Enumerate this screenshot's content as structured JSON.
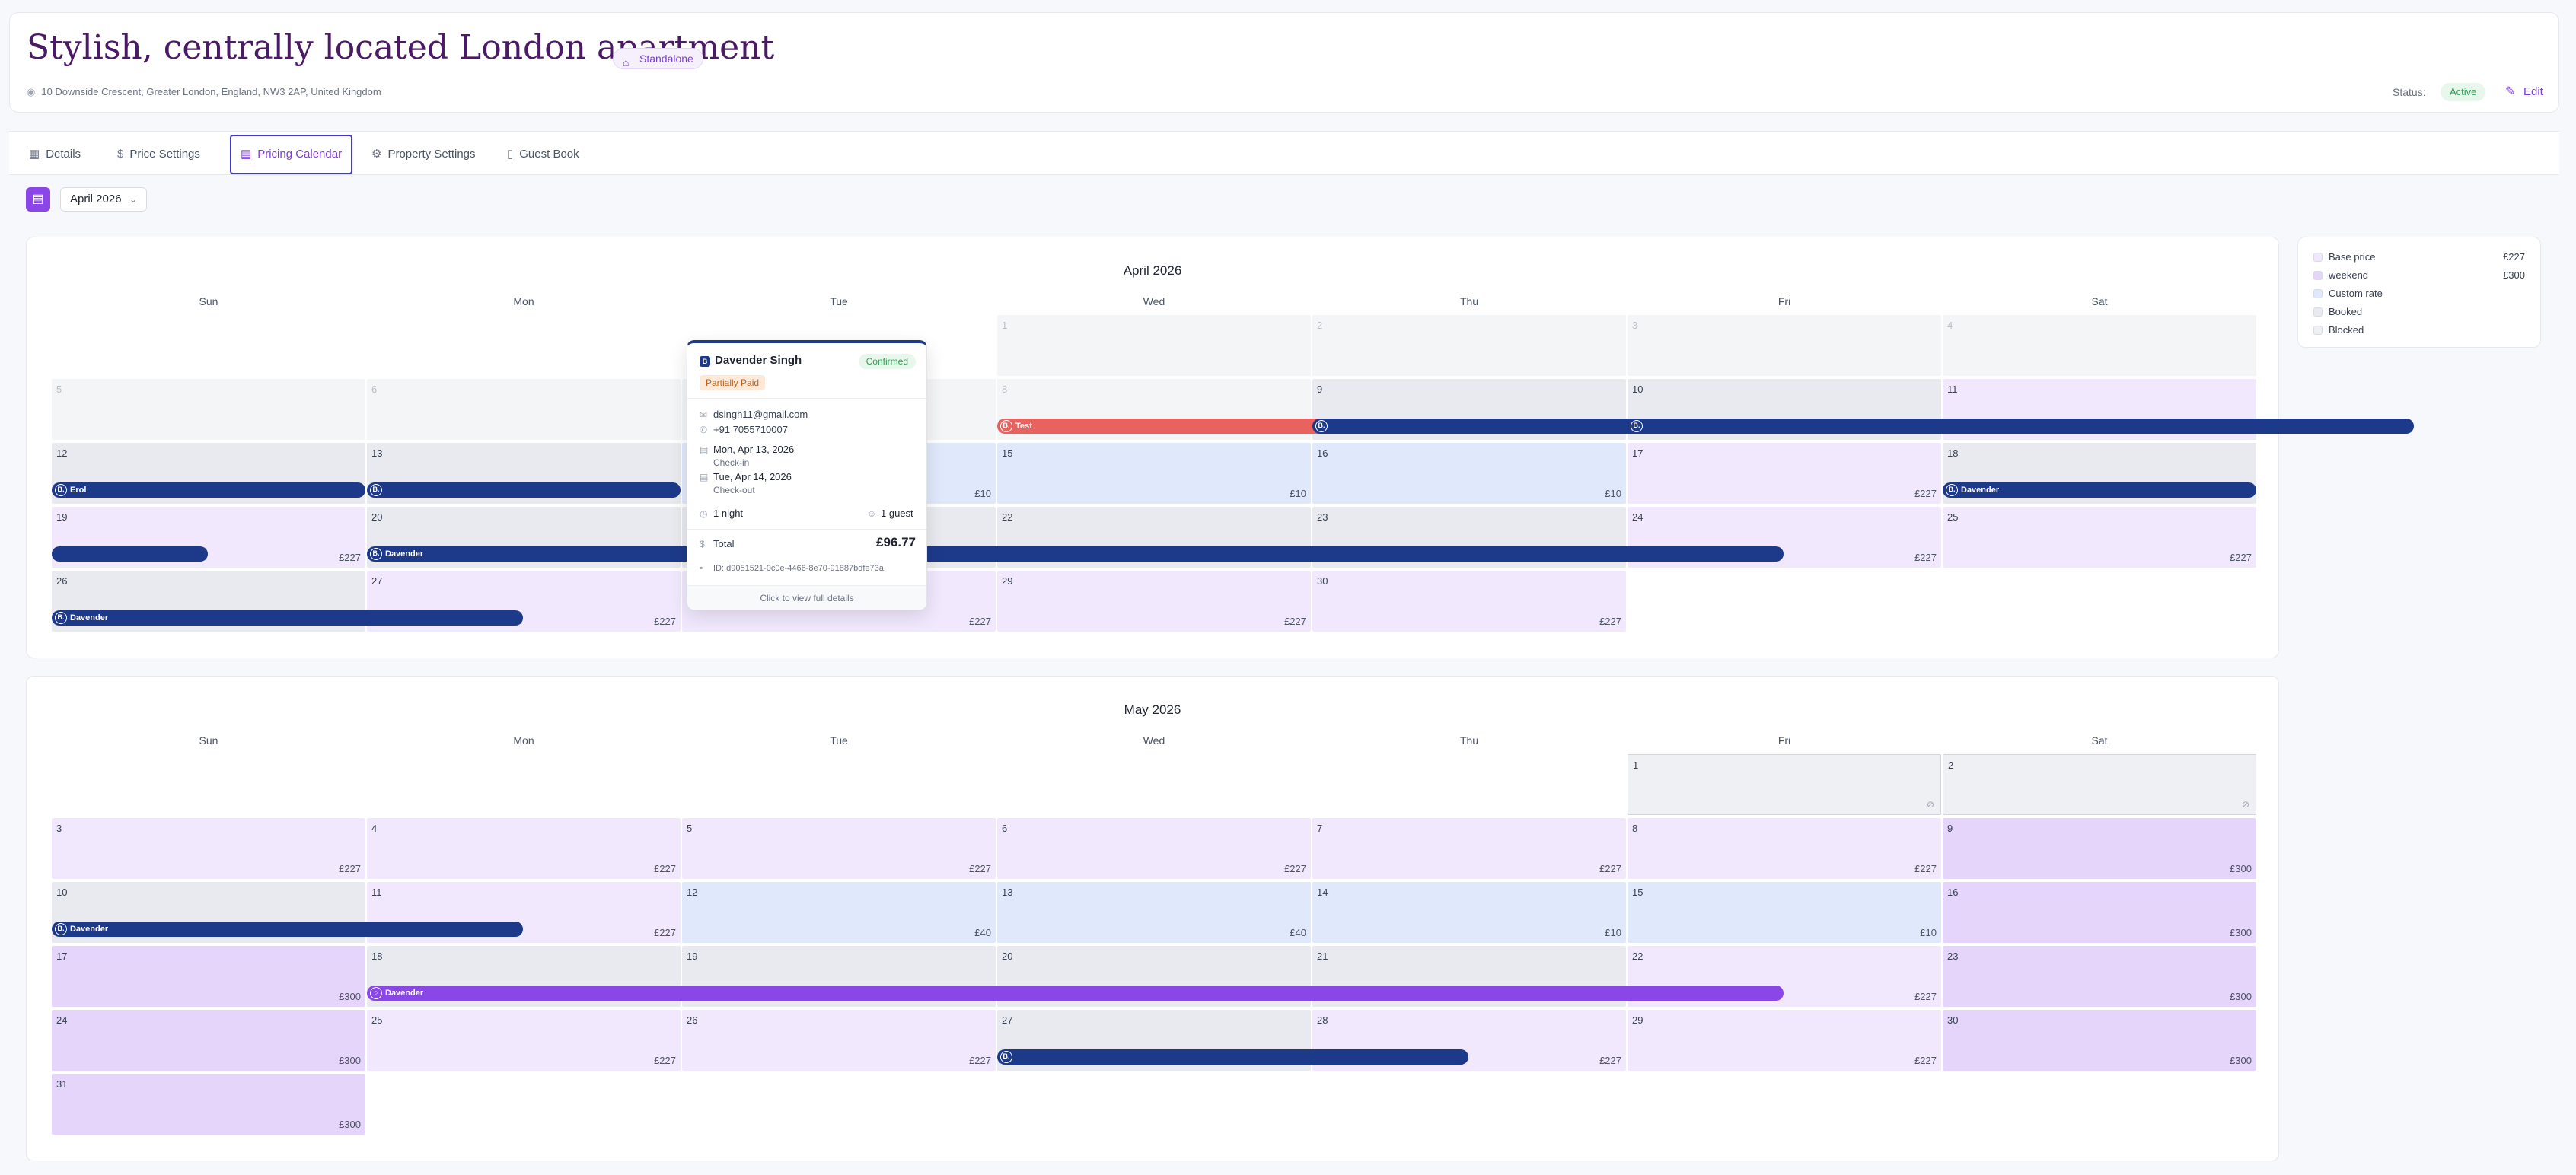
{
  "header": {
    "title": "Stylish, centrally located London apartment",
    "type_badge": "Standalone",
    "address": "10 Downside Crescent, Greater London, England, NW3 2AP, United Kingdom",
    "status_label": "Status:",
    "status_value": "Active",
    "edit_label": "Edit"
  },
  "tabs": [
    {
      "label": "Details",
      "icon": "building-icon"
    },
    {
      "label": "Price Settings",
      "icon": "dollar-icon"
    },
    {
      "label": "Pricing Calendar",
      "icon": "calendar-icon",
      "active": true
    },
    {
      "label": "Property Settings",
      "icon": "gear-icon"
    },
    {
      "label": "Guest Book",
      "icon": "book-icon"
    }
  ],
  "toolbar": {
    "month_select": "April 2026"
  },
  "weekdays": [
    "Sun",
    "Mon",
    "Tue",
    "Wed",
    "Thu",
    "Fri",
    "Sat"
  ],
  "colors": {
    "accent": "#8b46e8",
    "title": "#4b1a66",
    "booking_bar": "#1d3a8a",
    "test_bar": "#e8625f",
    "direct_bar": "#8b46e8"
  },
  "calendars": [
    {
      "month": "April 2026",
      "weeks": [
        [
          null,
          null,
          null,
          {
            "d": "1",
            "t": "past"
          },
          {
            "d": "2",
            "t": "past"
          },
          {
            "d": "3",
            "t": "past"
          },
          {
            "d": "4",
            "t": "past"
          }
        ],
        [
          {
            "d": "5",
            "t": "past"
          },
          {
            "d": "6",
            "t": "past"
          },
          {
            "d": "7",
            "t": "past"
          },
          {
            "d": "8",
            "t": "past"
          },
          {
            "d": "9",
            "t": "booked"
          },
          {
            "d": "10",
            "t": "booked"
          },
          {
            "d": "11",
            "t": "base",
            "p": "£227"
          }
        ],
        [
          {
            "d": "12",
            "t": "booked"
          },
          {
            "d": "13",
            "t": "booked"
          },
          {
            "d": "14",
            "t": "custom",
            "p": "£10"
          },
          {
            "d": "15",
            "t": "custom",
            "p": "£10"
          },
          {
            "d": "16",
            "t": "custom",
            "p": "£10"
          },
          {
            "d": "17",
            "t": "base",
            "p": "£227"
          },
          {
            "d": "18",
            "t": "booked"
          }
        ],
        [
          {
            "d": "19",
            "t": "base",
            "p": "£227"
          },
          {
            "d": "20",
            "t": "booked"
          },
          {
            "d": "21",
            "t": "booked"
          },
          {
            "d": "22",
            "t": "booked"
          },
          {
            "d": "23",
            "t": "booked"
          },
          {
            "d": "24",
            "t": "base",
            "p": "£227"
          },
          {
            "d": "25",
            "t": "base",
            "p": "£227"
          }
        ],
        [
          {
            "d": "26",
            "t": "booked"
          },
          {
            "d": "27",
            "t": "base",
            "p": "£227"
          },
          {
            "d": "28",
            "t": "base",
            "p": "£227"
          },
          {
            "d": "29",
            "t": "base",
            "p": "£227"
          },
          {
            "d": "30",
            "t": "base",
            "p": "£227"
          },
          null,
          null
        ]
      ],
      "bars": [
        {
          "week": 1,
          "start": 3,
          "span": 1.5,
          "label": "Test",
          "color": "#e8625f",
          "logo": "B."
        },
        {
          "week": 1,
          "start": 4,
          "span": 3.5,
          "label": "",
          "color": "#1d3a8a",
          "logo": "B."
        },
        {
          "week": 1,
          "start": 5,
          "span": 0.3,
          "label": "",
          "color": "#1d3a8a",
          "logo": "B."
        },
        {
          "week": 2,
          "start": 0,
          "span": 1,
          "label": "Erol",
          "color": "#1d3a8a",
          "logo": "B."
        },
        {
          "week": 2,
          "start": 1,
          "span": 1,
          "label": "",
          "color": "#1d3a8a",
          "logo": "B."
        },
        {
          "week": 2,
          "start": 6,
          "span": 1,
          "label": "Davender",
          "color": "#1d3a8a",
          "logo": "B."
        },
        {
          "week": 3,
          "start": 0,
          "span": 0.5,
          "label": "",
          "color": "#1d3a8a",
          "logo": ""
        },
        {
          "week": 3,
          "start": 1,
          "span": 4.5,
          "label": "Davender",
          "color": "#1d3a8a",
          "logo": "B."
        },
        {
          "week": 4,
          "start": 0,
          "span": 1.5,
          "label": "Davender",
          "color": "#1d3a8a",
          "logo": "B."
        }
      ]
    },
    {
      "month": "May 2026",
      "weeks": [
        [
          null,
          null,
          null,
          null,
          null,
          {
            "d": "1",
            "t": "blocked"
          },
          {
            "d": "2",
            "t": "blocked"
          }
        ],
        [
          {
            "d": "3",
            "t": "base",
            "p": "£227"
          },
          {
            "d": "4",
            "t": "base",
            "p": "£227"
          },
          {
            "d": "5",
            "t": "base",
            "p": "£227"
          },
          {
            "d": "6",
            "t": "base",
            "p": "£227"
          },
          {
            "d": "7",
            "t": "base",
            "p": "£227"
          },
          {
            "d": "8",
            "t": "base",
            "p": "£227"
          },
          {
            "d": "9",
            "t": "weekend",
            "p": "£300"
          }
        ],
        [
          {
            "d": "10",
            "t": "booked"
          },
          {
            "d": "11",
            "t": "base",
            "p": "£227"
          },
          {
            "d": "12",
            "t": "custom",
            "p": "£40"
          },
          {
            "d": "13",
            "t": "custom",
            "p": "£40"
          },
          {
            "d": "14",
            "t": "custom",
            "p": "£10"
          },
          {
            "d": "15",
            "t": "custom",
            "p": "£10"
          },
          {
            "d": "16",
            "t": "weekend",
            "p": "£300"
          }
        ],
        [
          {
            "d": "17",
            "t": "weekend",
            "p": "£300"
          },
          {
            "d": "18",
            "t": "booked"
          },
          {
            "d": "19",
            "t": "booked"
          },
          {
            "d": "20",
            "t": "booked"
          },
          {
            "d": "21",
            "t": "booked"
          },
          {
            "d": "22",
            "t": "base",
            "p": "£227"
          },
          {
            "d": "23",
            "t": "weekend",
            "p": "£300"
          }
        ],
        [
          {
            "d": "24",
            "t": "weekend",
            "p": "£300"
          },
          {
            "d": "25",
            "t": "base",
            "p": "£227"
          },
          {
            "d": "26",
            "t": "base",
            "p": "£227"
          },
          {
            "d": "27",
            "t": "booked"
          },
          {
            "d": "28",
            "t": "base",
            "p": "£227"
          },
          {
            "d": "29",
            "t": "base",
            "p": "£227"
          },
          {
            "d": "30",
            "t": "weekend",
            "p": "£300"
          }
        ],
        [
          {
            "d": "31",
            "t": "weekend",
            "p": "£300"
          },
          null,
          null,
          null,
          null,
          null,
          null
        ]
      ],
      "bars": [
        {
          "week": 2,
          "start": 0,
          "span": 1.5,
          "label": "Davender",
          "color": "#1d3a8a",
          "logo": "B."
        },
        {
          "week": 3,
          "start": 1,
          "span": 4.5,
          "label": "Davender",
          "color": "#8b46e8",
          "logo": "○"
        },
        {
          "week": 4,
          "start": 3,
          "span": 1.5,
          "label": "",
          "color": "#1d3a8a",
          "logo": "B."
        }
      ]
    }
  ],
  "legend": [
    {
      "label": "Base price",
      "value": "£227",
      "color": "#f1e8fd"
    },
    {
      "label": "weekend",
      "value": "£300",
      "color": "#e6d5fa"
    },
    {
      "label": "Custom rate",
      "value": "",
      "color": "#dfe9fb"
    },
    {
      "label": "Booked",
      "value": "",
      "color": "#e8eaef"
    },
    {
      "label": "Blocked",
      "value": "",
      "color": "#eef0f4"
    }
  ],
  "popup": {
    "guest_name": "Davender Singh",
    "status": "Confirmed",
    "payment": "Partially Paid",
    "email": "dsingh11@gmail.com",
    "phone": "+91 7055710007",
    "checkin_date": "Mon, Apr 13, 2026",
    "checkin_label": "Check-in",
    "checkout_date": "Tue, Apr 14, 2026",
    "checkout_label": "Check-out",
    "nights": "1 night",
    "guests": "1 guest",
    "total_label": "Total",
    "total_value": "£96.77",
    "id": "ID: d9051521-0c0e-4466-8e70-91887bdfe73a",
    "footer": "Click to view full details"
  }
}
